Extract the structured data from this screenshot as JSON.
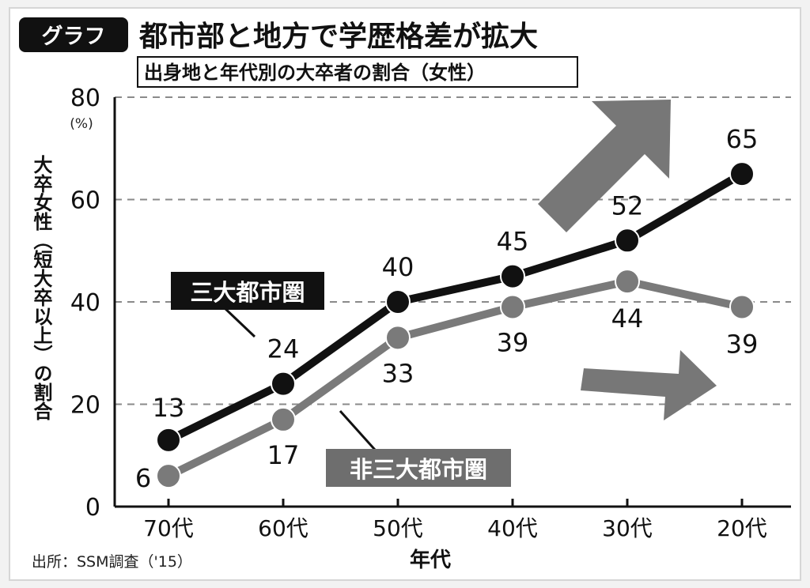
{
  "header": {
    "badge": "グラフ",
    "title": "都市部と地方で学歴格差が拡大",
    "subtitle": "出身地と年代別の大卒者の割合（女性）"
  },
  "source": "出所：SSM調査（'15）",
  "chart_data": {
    "type": "line",
    "categories": [
      "70代",
      "60代",
      "50代",
      "40代",
      "30代",
      "20代"
    ],
    "series": [
      {
        "name": "三大都市圏",
        "values": [
          13,
          24,
          40,
          45,
          52,
          65
        ],
        "color": "#111111"
      },
      {
        "name": "非三大都市圏",
        "values": [
          6,
          17,
          33,
          39,
          44,
          39
        ],
        "color": "#7a7a7a"
      }
    ],
    "ylim": [
      0,
      80
    ],
    "yticks": [
      0,
      20,
      40,
      60,
      80
    ],
    "yunit": "(%)",
    "xlabel": "年代",
    "ylabel": "大卒女性（短大卒以上）の割合",
    "grid": true,
    "legend": "inline labels"
  }
}
